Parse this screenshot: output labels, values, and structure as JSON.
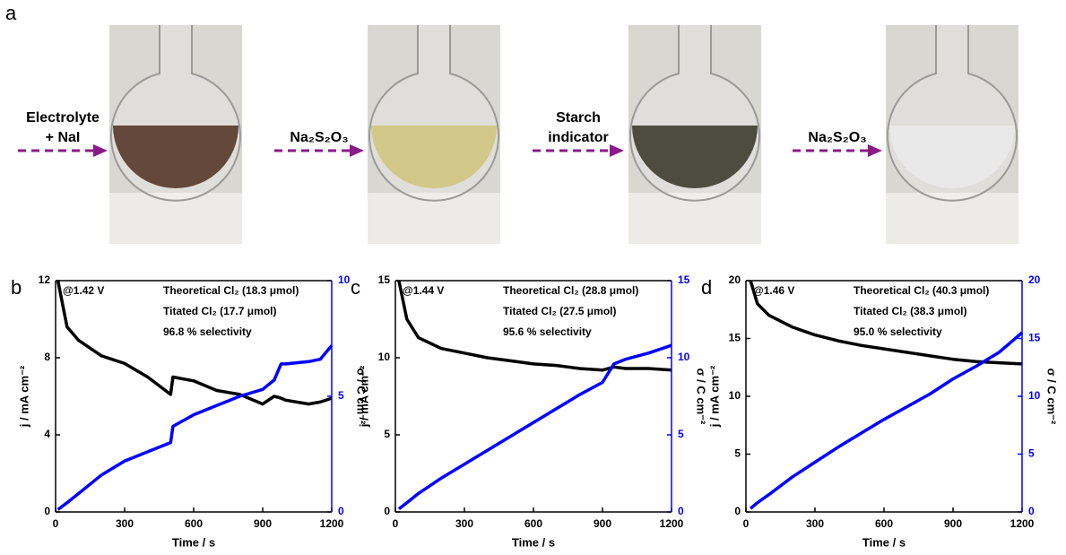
{
  "scheme": {
    "label": "a",
    "steps": [
      [
        "Electrolyte",
        "+ NaI"
      ],
      [
        "Na₂S₂O₃"
      ],
      [
        "Starch",
        "indicator"
      ],
      [
        "Na₂S₂O₃"
      ]
    ]
  },
  "chart_data": [
    {
      "type": "line",
      "panel": "b",
      "xlabel": "Time / s",
      "ylabel": "j / mA cm⁻²",
      "y2label": "σ / C cm⁻²",
      "annotations": [
        "@1.42 V",
        "Theoretical Cl₂ (18.3 μmol)",
        "Titated Cl₂ (17.7 μmol)",
        "96.8 % selectivity"
      ],
      "xlim": [
        0,
        1200
      ],
      "xticks": [
        0,
        300,
        600,
        900,
        1200
      ],
      "ylim": [
        0,
        12
      ],
      "yticks": [
        0,
        4,
        8,
        12
      ],
      "y2lim": [
        0,
        10
      ],
      "y2ticks": [
        0,
        5,
        10
      ],
      "x": [
        10,
        50,
        100,
        200,
        300,
        400,
        500,
        510,
        600,
        700,
        800,
        900,
        950,
        980,
        1000,
        1100,
        1150,
        1200
      ],
      "series": [
        {
          "color": "#000000",
          "values": [
            12,
            9.6,
            8.9,
            8.1,
            7.7,
            7.0,
            6.1,
            7.0,
            6.8,
            6.3,
            6.1,
            5.6,
            6.0,
            5.9,
            5.8,
            5.6,
            5.7,
            5.9
          ]
        },
        {
          "color": "#0000ff",
          "axis": "y2",
          "values": [
            0.1,
            0.4,
            0.8,
            1.6,
            2.2,
            2.6,
            3.0,
            3.7,
            4.2,
            4.6,
            5.0,
            5.3,
            5.7,
            6.4,
            6.4,
            6.5,
            6.6,
            7.2
          ]
        }
      ]
    },
    {
      "type": "line",
      "panel": "c",
      "xlabel": "Time / s",
      "ylabel": "j / mA cm⁻²",
      "y2label": "σ / C cm⁻²",
      "annotations": [
        "@1.44 V",
        "Theoretical Cl₂ (28.8 μmol)",
        "Titated Cl₂ (27.5 μmol)",
        "95.6 % selectivity"
      ],
      "xlim": [
        0,
        1200
      ],
      "xticks": [
        0,
        300,
        600,
        900,
        1200
      ],
      "ylim": [
        0,
        15
      ],
      "yticks": [
        0,
        5,
        10,
        15
      ],
      "y2lim": [
        0,
        15
      ],
      "y2ticks": [
        0,
        5,
        10,
        15
      ],
      "x": [
        15,
        50,
        100,
        200,
        300,
        400,
        500,
        600,
        700,
        800,
        900,
        950,
        1000,
        1100,
        1200
      ],
      "series": [
        {
          "color": "#000000",
          "values": [
            15,
            12.5,
            11.3,
            10.6,
            10.3,
            10.0,
            9.8,
            9.6,
            9.5,
            9.3,
            9.2,
            9.4,
            9.3,
            9.3,
            9.2
          ]
        },
        {
          "color": "#0000ff",
          "axis": "y2",
          "values": [
            0.2,
            0.6,
            1.2,
            2.2,
            3.1,
            4.0,
            4.9,
            5.8,
            6.7,
            7.6,
            8.4,
            9.6,
            9.9,
            10.3,
            10.8
          ]
        }
      ]
    },
    {
      "type": "line",
      "panel": "d",
      "xlabel": "Time / s",
      "ylabel": "j / mA cm⁻²",
      "y2label": "σ / C cm⁻²",
      "annotations": [
        "@1.46 V",
        "Theoretical Cl₂ (40.3 μmol)",
        "Titated Cl₂ (38.3 μmol)",
        "95.0 % selectivity"
      ],
      "xlim": [
        0,
        1200
      ],
      "xticks": [
        0,
        300,
        600,
        900,
        1200
      ],
      "ylim": [
        0,
        20
      ],
      "yticks": [
        0,
        5,
        10,
        15,
        20
      ],
      "y2lim": [
        0,
        20
      ],
      "y2ticks": [
        0,
        5,
        10,
        15,
        20
      ],
      "x": [
        20,
        50,
        100,
        200,
        300,
        400,
        500,
        600,
        700,
        800,
        900,
        1000,
        1100,
        1200
      ],
      "series": [
        {
          "color": "#000000",
          "values": [
            20,
            18,
            17,
            16,
            15.3,
            14.8,
            14.4,
            14.1,
            13.8,
            13.5,
            13.2,
            13.0,
            12.9,
            12.8
          ]
        },
        {
          "color": "#0000ff",
          "axis": "y2",
          "values": [
            0.3,
            0.8,
            1.5,
            3.0,
            4.3,
            5.6,
            6.8,
            8.0,
            9.1,
            10.2,
            11.5,
            12.6,
            13.8,
            15.5
          ]
        }
      ]
    }
  ]
}
